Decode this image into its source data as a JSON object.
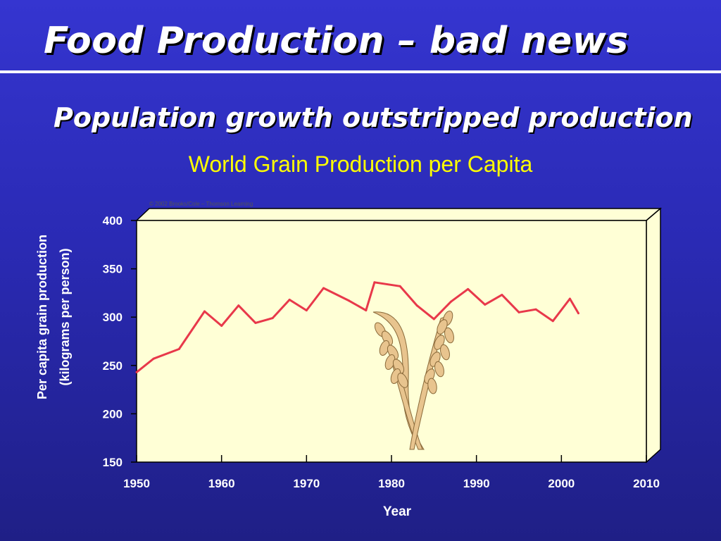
{
  "slide": {
    "title": "Food Production – bad news",
    "subtitle": "Population growth outstripped production"
  },
  "chart_data": {
    "type": "line",
    "title": "World Grain Production per Capita",
    "xlabel": "Year",
    "ylabel": "Per capita grain production (kilograms per person)",
    "ylabel_lines": [
      "Per capita grain production",
      "(kilograms per person)"
    ],
    "copyright": "© 2002 Brooks/Cole – Thomson Learning",
    "xlim": [
      1950,
      2010
    ],
    "ylim": [
      150,
      400
    ],
    "x_ticks": [
      "1950",
      "1960",
      "1970",
      "1980",
      "1990",
      "2000",
      "2010"
    ],
    "y_ticks": [
      "150",
      "200",
      "250",
      "300",
      "350",
      "400"
    ],
    "grid": false,
    "series": [
      {
        "x": [
          1950,
          1952,
          1955,
          1958,
          1960,
          1962,
          1964,
          1966,
          1968,
          1970,
          1972,
          1975,
          1977,
          1978,
          1981,
          1983,
          1985,
          1987,
          1989,
          1991,
          1993,
          1995,
          1997,
          1999,
          2001,
          2002
        ],
        "y": [
          243,
          257,
          267,
          306,
          291,
          312,
          294,
          299,
          318,
          307,
          330,
          317,
          307,
          336,
          332,
          312,
          298,
          316,
          329,
          313,
          323,
          305,
          308,
          296,
          319,
          304
        ]
      }
    ],
    "colors": {
      "line": "#e8384a",
      "plot_bg": "#ffffd6",
      "frame": "#000000",
      "axis_text": "#ffffff"
    }
  },
  "decoration": {
    "icon": "wheat-stalks-icon"
  }
}
